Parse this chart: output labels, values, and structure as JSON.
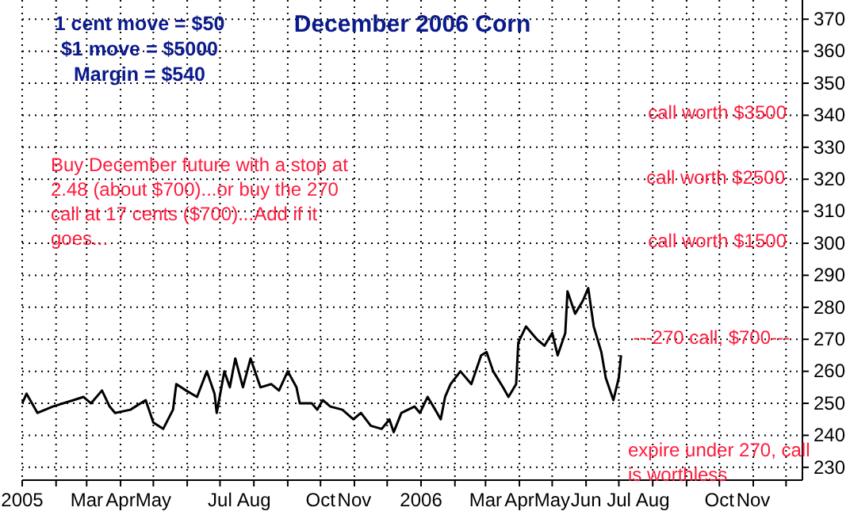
{
  "chart_data": {
    "type": "line",
    "title": "December 2006 Corn",
    "x": [
      "2005-01-01",
      "2005-01-05",
      "2005-01-15",
      "2005-01-29",
      "2005-02-17",
      "2005-02-26",
      "2005-03-05",
      "2005-03-15",
      "2005-03-22",
      "2005-03-27",
      "2005-04-10",
      "2005-04-24",
      "2005-05-01",
      "2005-05-10",
      "2005-05-19",
      "2005-05-22",
      "2005-05-31",
      "2005-06-10",
      "2005-06-19",
      "2005-06-26",
      "2005-06-28",
      "2005-07-05",
      "2005-07-10",
      "2005-07-15",
      "2005-07-22",
      "2005-07-29",
      "2005-08-07",
      "2005-08-17",
      "2005-08-24",
      "2005-09-01",
      "2005-09-09",
      "2005-09-12",
      "2005-09-23",
      "2005-09-28",
      "2005-10-03",
      "2005-10-10",
      "2005-10-21",
      "2005-10-31",
      "2005-11-07",
      "2005-11-16",
      "2005-11-26",
      "2005-12-03",
      "2005-12-07",
      "2005-12-14",
      "2005-12-26",
      "2005-12-31",
      "2006-01-07",
      "2006-01-14",
      "2006-01-19",
      "2006-01-23",
      "2006-01-28",
      "2006-02-06",
      "2006-02-16",
      "2006-02-25",
      "2006-03-02",
      "2006-03-08",
      "2006-03-17",
      "2006-03-22",
      "2006-03-29",
      "2006-03-31",
      "2006-04-07",
      "2006-04-17",
      "2006-04-24",
      "2006-05-01",
      "2006-05-06",
      "2006-05-13",
      "2006-05-15",
      "2006-05-22",
      "2006-05-29",
      "2006-06-03",
      "2006-06-08",
      "2006-06-15",
      "2006-06-19",
      "2006-06-26",
      "2006-07-01",
      "2006-07-03"
    ],
    "series": [
      {
        "color": "#000000",
        "values": [
          250,
          253,
          247,
          249,
          251,
          252,
          250,
          254,
          249,
          247,
          248,
          251,
          244,
          242,
          248,
          256,
          254,
          252,
          260,
          253,
          247,
          260,
          255,
          264,
          255,
          264,
          255,
          256,
          254,
          260,
          255,
          250,
          250,
          248,
          251,
          249,
          248,
          245,
          247,
          243,
          242,
          245,
          241,
          247,
          249,
          247,
          252,
          248,
          245,
          252,
          256,
          260,
          256,
          265,
          266,
          260,
          255,
          252,
          256,
          269,
          274,
          270,
          268,
          272,
          265,
          272,
          285,
          278,
          282,
          286,
          274,
          266,
          258,
          251,
          258,
          265
        ]
      }
    ],
    "xlim": [
      "2005-01-01",
      "2006-12-16"
    ],
    "xticks": [
      {
        "value": "2005-01-01",
        "label": "2005"
      },
      {
        "value": "2005-02-01",
        "label": null
      },
      {
        "value": "2005-03-01",
        "label": "Mar"
      },
      {
        "value": "2005-04-01",
        "label": "Apr"
      },
      {
        "value": "2005-05-01",
        "label": "May"
      },
      {
        "value": "2005-06-01",
        "label": null
      },
      {
        "value": "2005-07-01",
        "label": "Jul"
      },
      {
        "value": "2005-08-01",
        "label": "Aug"
      },
      {
        "value": "2005-09-01",
        "label": null
      },
      {
        "value": "2005-10-01",
        "label": "Oct"
      },
      {
        "value": "2005-11-01",
        "label": "Nov"
      },
      {
        "value": "2005-12-01",
        "label": null
      },
      {
        "value": "2006-01-01",
        "label": "2006"
      },
      {
        "value": "2006-02-01",
        "label": null
      },
      {
        "value": "2006-03-01",
        "label": "Mar"
      },
      {
        "value": "2006-04-01",
        "label": "Apr"
      },
      {
        "value": "2006-05-01",
        "label": "May"
      },
      {
        "value": "2006-06-01",
        "label": "Jun"
      },
      {
        "value": "2006-07-01",
        "label": "Jul"
      },
      {
        "value": "2006-08-01",
        "label": "Aug"
      },
      {
        "value": "2006-09-01",
        "label": null
      },
      {
        "value": "2006-10-01",
        "label": "Oct"
      },
      {
        "value": "2006-11-01",
        "label": "Nov"
      },
      {
        "value": "2006-12-01",
        "label": null
      }
    ],
    "ylim": [
      226,
      376
    ],
    "yticks": [
      230,
      240,
      250,
      260,
      270,
      280,
      290,
      300,
      310,
      320,
      330,
      340,
      350,
      360,
      370
    ],
    "grid": true,
    "marker": "none",
    "line_style": "solid",
    "annotations": [
      "1 cent move  = $50",
      "$1 move = $5000",
      "Margin = $540",
      "Buy December future with a stop at 2.48 (about $700)...or buy the 270 call at 17 cents ($700)...Add if it goes...",
      "expire under 270, call is worthless",
      "call worth $3500",
      "call worth $2500",
      "call worth $1500",
      "---270 call, $700---"
    ]
  }
}
